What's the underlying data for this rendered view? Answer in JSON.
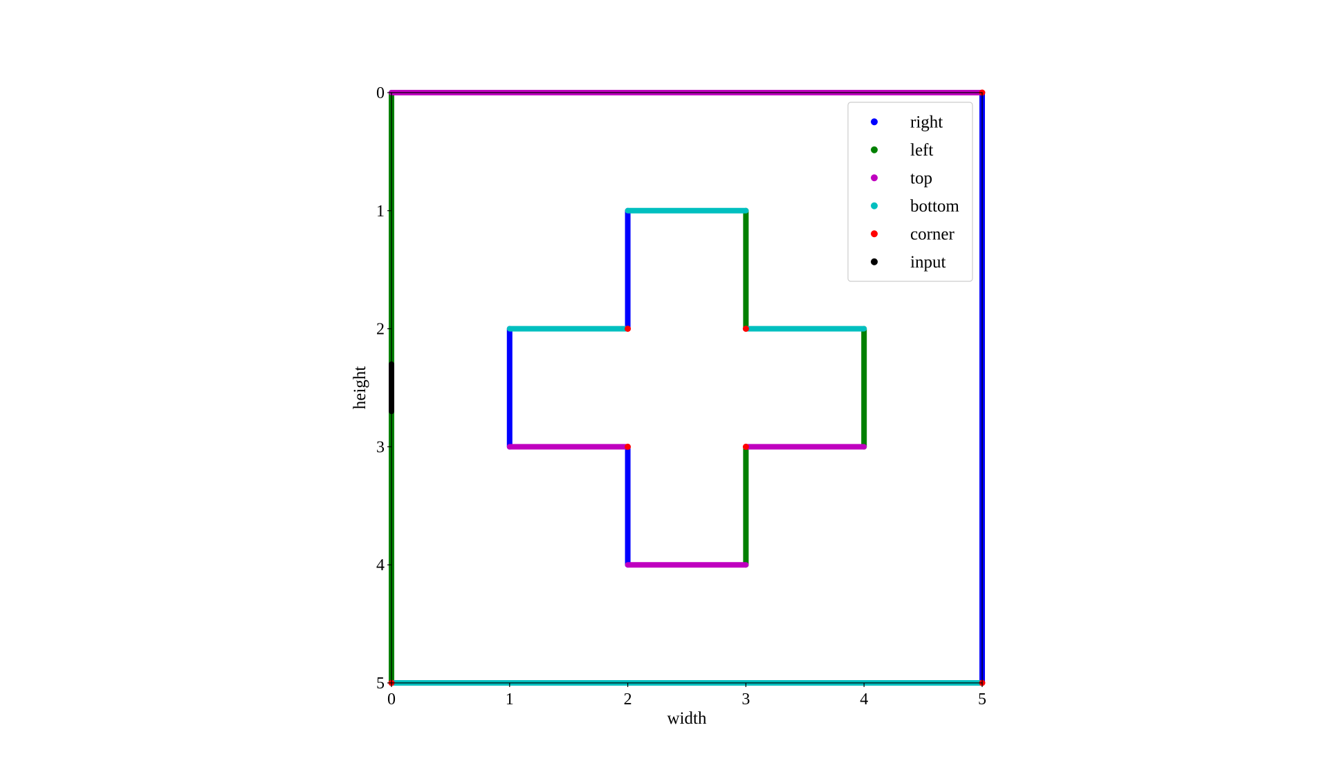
{
  "chart_data": {
    "type": "scatter",
    "title": "",
    "xlabel": "width",
    "ylabel": "height",
    "xlim": [
      0,
      5
    ],
    "ylim": [
      5,
      0
    ],
    "y_inverted": true,
    "aspect": "equal",
    "grid": false,
    "xticks": [
      0,
      1,
      2,
      3,
      4,
      5
    ],
    "yticks": [
      0,
      1,
      2,
      3,
      4,
      5
    ],
    "legend": {
      "placement": "top-right",
      "entries": [
        "right",
        "left",
        "top",
        "bottom",
        "corner",
        "input"
      ]
    },
    "series": [
      {
        "name": "right",
        "color": "#0000ff",
        "segments": [
          {
            "from": [
              5,
              0
            ],
            "to": [
              5,
              5
            ]
          },
          {
            "from": [
              2,
              1
            ],
            "to": [
              2,
              2
            ]
          },
          {
            "from": [
              1,
              2
            ],
            "to": [
              1,
              3
            ]
          },
          {
            "from": [
              2,
              3
            ],
            "to": [
              2,
              4
            ]
          }
        ]
      },
      {
        "name": "left",
        "color": "#008000",
        "segments": [
          {
            "from": [
              0,
              0
            ],
            "to": [
              0,
              5
            ]
          },
          {
            "from": [
              3,
              1
            ],
            "to": [
              3,
              2
            ]
          },
          {
            "from": [
              4,
              2
            ],
            "to": [
              4,
              3
            ]
          },
          {
            "from": [
              3,
              3
            ],
            "to": [
              3,
              4
            ]
          }
        ]
      },
      {
        "name": "top",
        "color": "#bf00bf",
        "segments": [
          {
            "from": [
              0,
              0
            ],
            "to": [
              5,
              0
            ]
          },
          {
            "from": [
              1,
              3
            ],
            "to": [
              2,
              3
            ]
          },
          {
            "from": [
              3,
              3
            ],
            "to": [
              4,
              3
            ]
          },
          {
            "from": [
              2,
              4
            ],
            "to": [
              3,
              4
            ]
          }
        ]
      },
      {
        "name": "bottom",
        "color": "#00bfbf",
        "segments": [
          {
            "from": [
              0,
              5
            ],
            "to": [
              5,
              5
            ]
          },
          {
            "from": [
              2,
              1
            ],
            "to": [
              3,
              1
            ]
          },
          {
            "from": [
              1,
              2
            ],
            "to": [
              2,
              2
            ]
          },
          {
            "from": [
              3,
              2
            ],
            "to": [
              4,
              2
            ]
          }
        ]
      },
      {
        "name": "corner",
        "color": "#ff0000",
        "points": [
          [
            5,
            0
          ],
          [
            0,
            5
          ],
          [
            5,
            5
          ],
          [
            2,
            2
          ],
          [
            3,
            2
          ],
          [
            2,
            3
          ],
          [
            3,
            3
          ]
        ]
      },
      {
        "name": "input",
        "color": "#000000",
        "segments": [
          {
            "from": [
              0,
              2.3
            ],
            "to": [
              0,
              2.7
            ]
          }
        ]
      }
    ]
  }
}
